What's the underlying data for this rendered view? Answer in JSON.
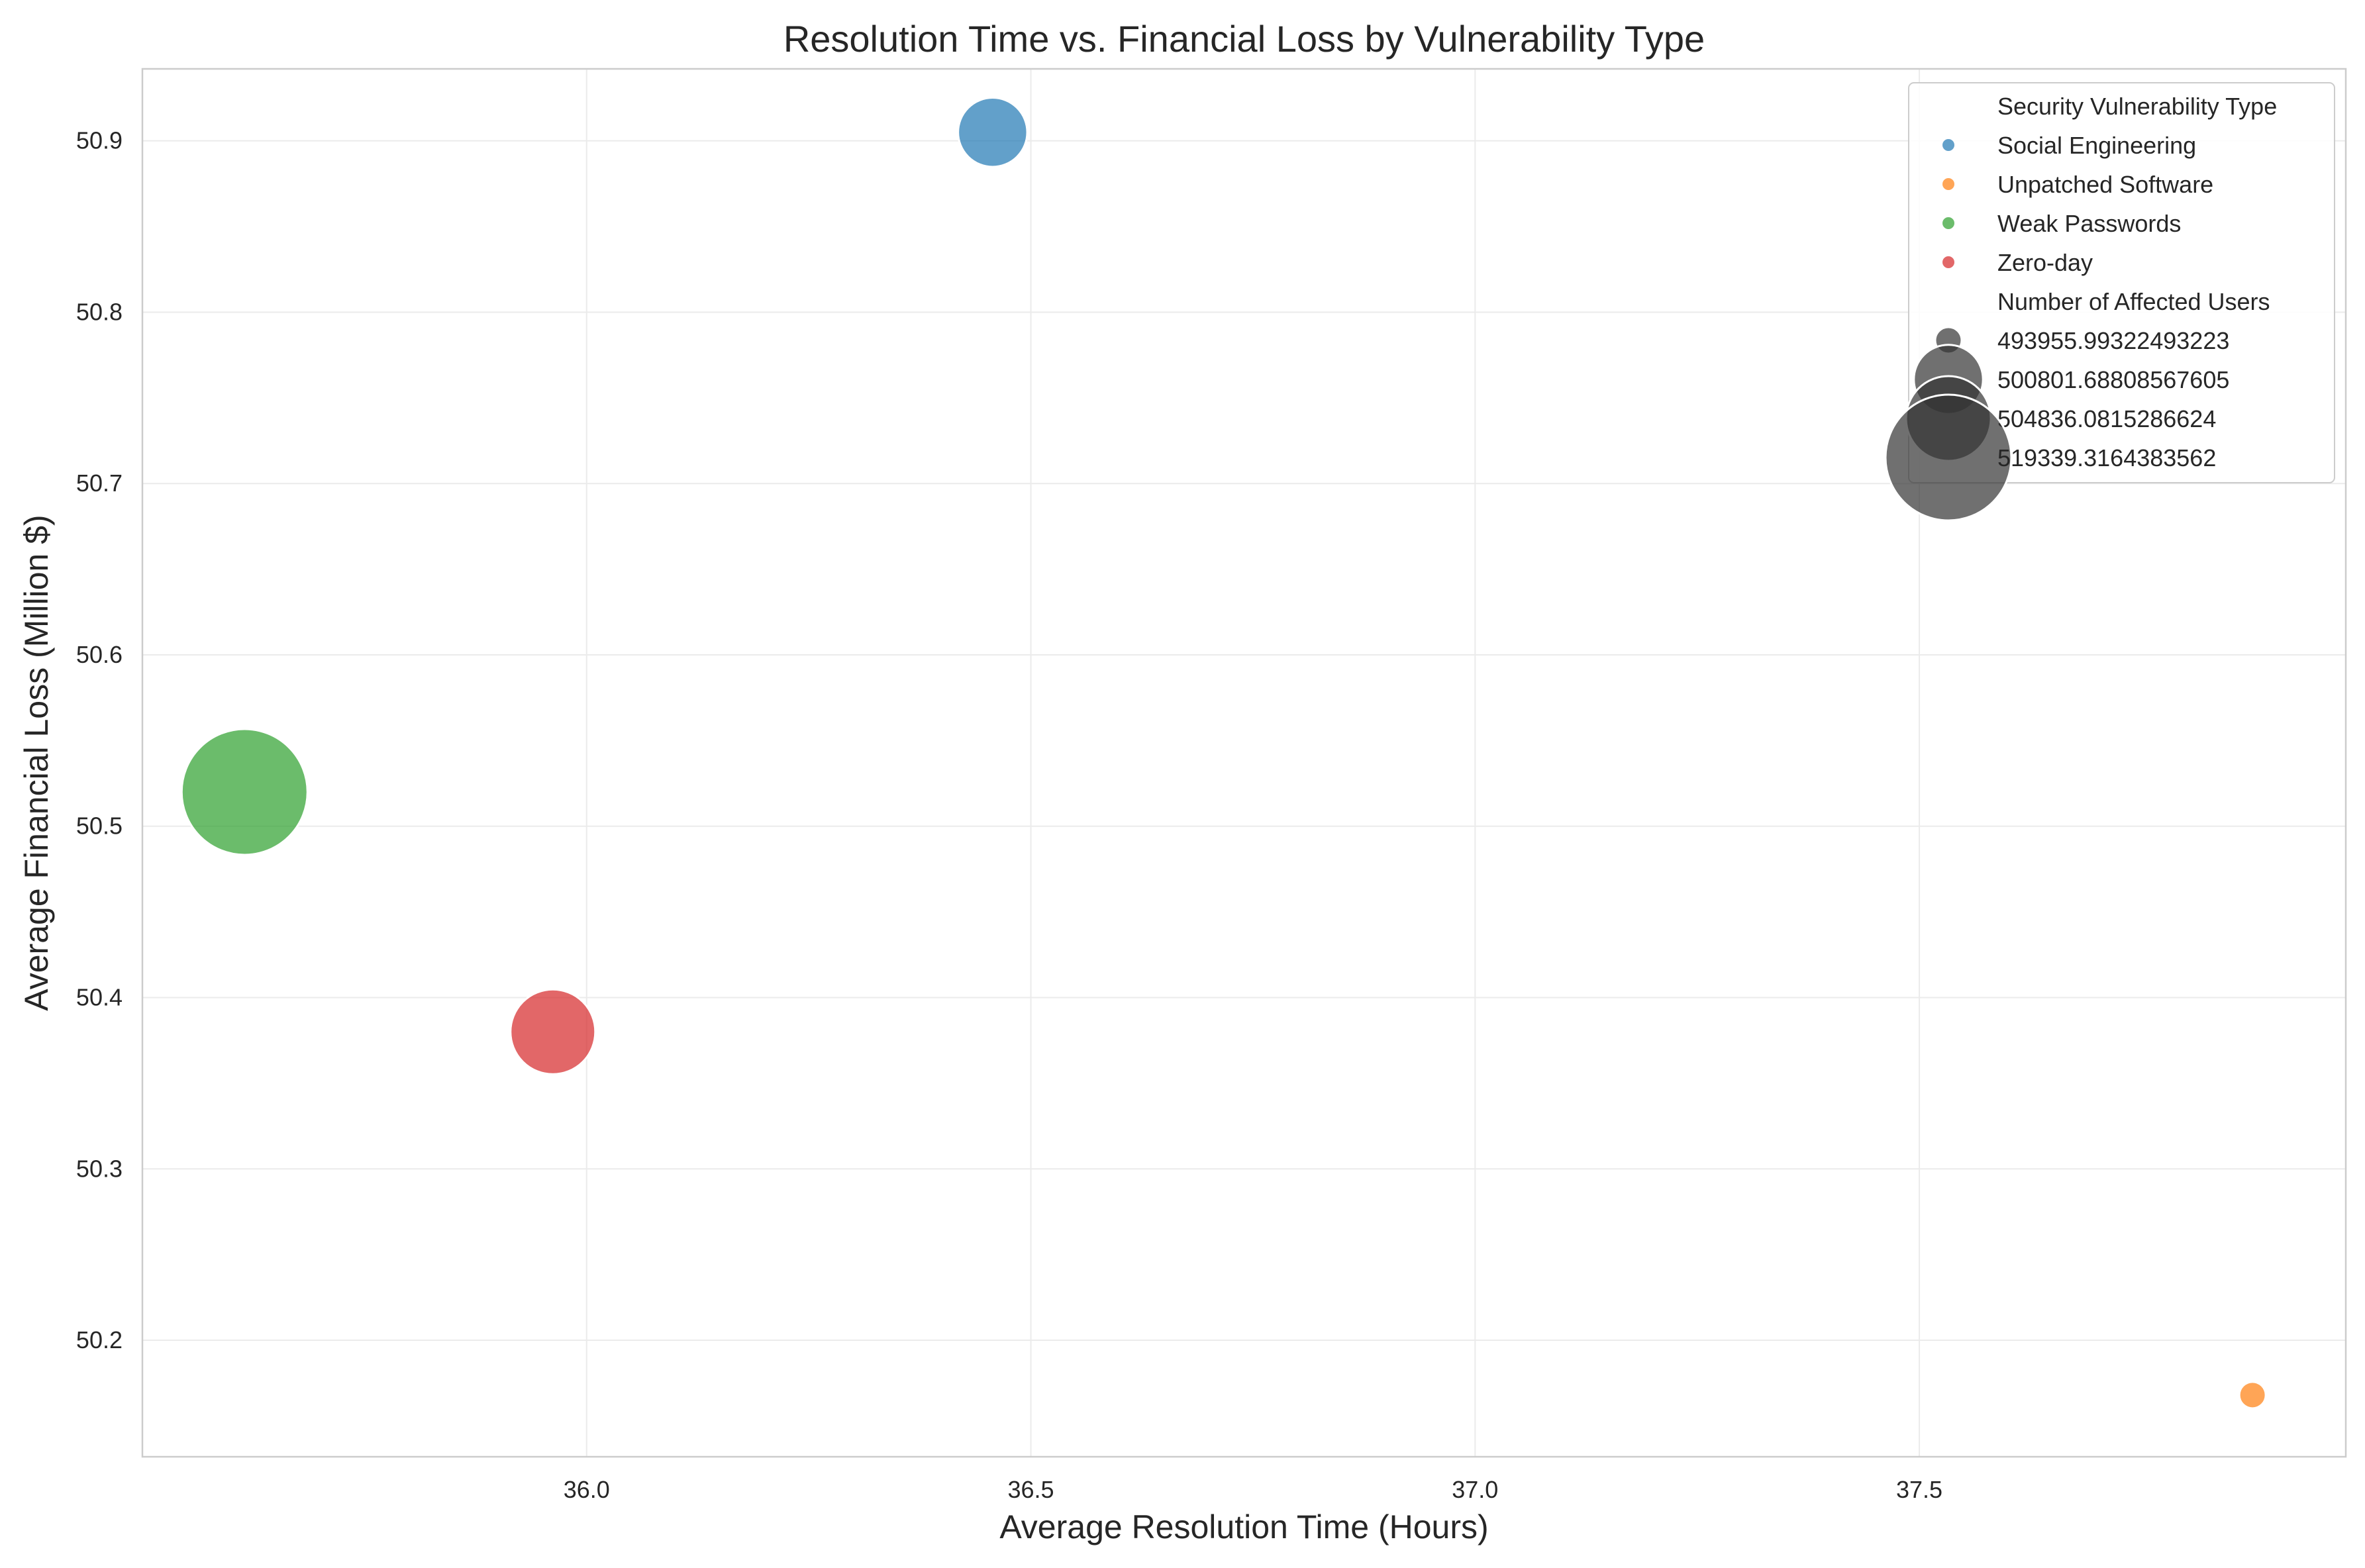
{
  "chart_data": {
    "type": "scatter",
    "title": "Resolution Time vs. Financial Loss by Vulnerability Type",
    "xlabel": "Average Resolution Time (Hours)",
    "ylabel": "Average Financial Loss (Million $)",
    "xlim": [
      35.5,
      37.98
    ],
    "ylim": [
      50.132,
      50.942
    ],
    "xticks": [
      "36.0",
      "36.5",
      "37.0",
      "37.5"
    ],
    "yticks": [
      "50.2",
      "50.3",
      "50.4",
      "50.5",
      "50.6",
      "50.7",
      "50.8",
      "50.9"
    ],
    "grid": true,
    "legend_position": "top-right",
    "hue_title": "Security Vulnerability Type",
    "size_title": "Number of Affected Users",
    "series": [
      {
        "name": "Social Engineering",
        "color": "#1f77b4",
        "x": 36.457,
        "y": 50.905,
        "users": 500801.68808567605
      },
      {
        "name": "Unpatched Software",
        "color": "#ff7f0e",
        "x": 37.875,
        "y": 50.168,
        "users": 493955.99322493223
      },
      {
        "name": "Weak Passwords",
        "color": "#2ca02c",
        "x": 35.615,
        "y": 50.52,
        "users": 519339.3164383562
      },
      {
        "name": "Zero-day",
        "color": "#d62728",
        "x": 35.962,
        "y": 50.38,
        "users": 504836.0815286624
      }
    ],
    "size_legend": [
      "493955.99322493223",
      "500801.68808567605",
      "504836.0815286624",
      "519339.3164383562"
    ]
  }
}
